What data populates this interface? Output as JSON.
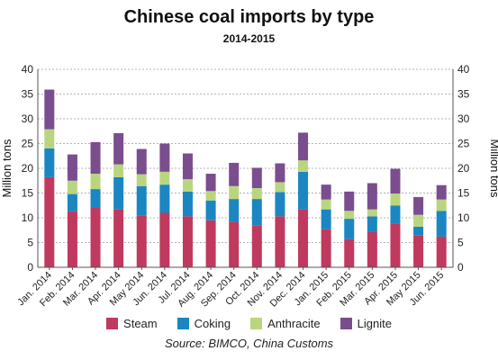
{
  "chart_data": {
    "type": "bar",
    "stacked": true,
    "title": "Chinese coal imports by type",
    "subtitle": "2014-2015",
    "ylabel": "Million tons",
    "ylabel_right": "Million tons",
    "ylim": [
      0,
      40
    ],
    "yticks": [
      0,
      5,
      10,
      15,
      20,
      25,
      30,
      35,
      40
    ],
    "grid": true,
    "legend_position": "bottom",
    "source": "Source: BIMCO, China Customs",
    "categories": [
      "Jan. 2014",
      "Feb. 2014",
      "Mar. 2014",
      "Apr. 2014",
      "May 2014",
      "Jun. 2014",
      "Jul. 2014",
      "Aug. 2014",
      "Sep. 2014",
      "Oct. 2014",
      "Nov. 2014",
      "Dec. 2014",
      "Jan. 2015",
      "Feb. 2015",
      "Mar. 2015",
      "Apr. 2015",
      "May 2015",
      "Jun. 2015"
    ],
    "series": [
      {
        "name": "Steam",
        "color": "#c0395e",
        "values": [
          18.2,
          11.3,
          12.0,
          11.7,
          10.5,
          11.0,
          10.3,
          9.5,
          9.2,
          8.5,
          10.3,
          11.7,
          7.7,
          5.7,
          7.1,
          8.8,
          6.4,
          6.2
        ]
      },
      {
        "name": "Coking",
        "color": "#1b86c1",
        "values": [
          5.8,
          3.5,
          3.8,
          6.5,
          5.9,
          5.7,
          5.0,
          4.0,
          4.6,
          5.3,
          4.9,
          7.6,
          4.0,
          4.1,
          3.2,
          3.7,
          1.8,
          5.2
        ]
      },
      {
        "name": "Anthracite",
        "color": "#b9d67f",
        "values": [
          3.9,
          2.7,
          3.1,
          2.6,
          2.4,
          2.6,
          2.5,
          1.9,
          2.6,
          2.2,
          2.0,
          2.3,
          2.0,
          1.6,
          1.4,
          2.4,
          2.4,
          2.3
        ]
      },
      {
        "name": "Lignite",
        "color": "#7a4d8f",
        "values": [
          8.0,
          5.3,
          6.4,
          6.3,
          5.1,
          5.7,
          5.2,
          3.5,
          4.7,
          4.1,
          3.8,
          5.6,
          3.0,
          3.9,
          5.3,
          5.0,
          3.6,
          2.9
        ]
      }
    ]
  }
}
